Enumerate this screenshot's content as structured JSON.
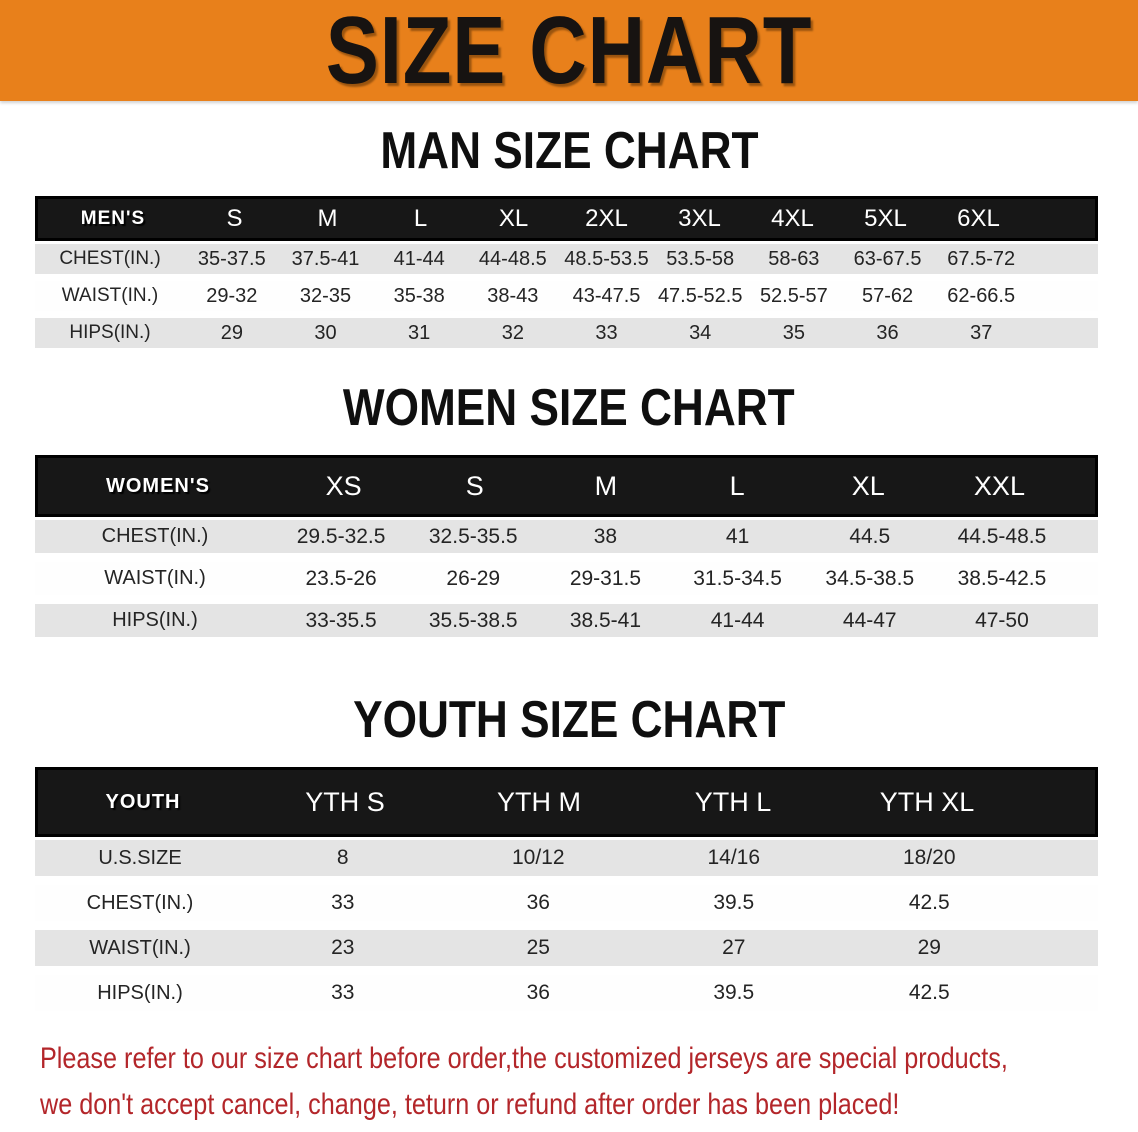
{
  "banner": {
    "title": "SIZE CHART",
    "bg_color": "#E8801B"
  },
  "sections": [
    {
      "heading": "MAN SIZE CHART",
      "header_label": "MEN'S",
      "columns": [
        "S",
        "M",
        "L",
        "XL",
        "2XL",
        "3XL",
        "4XL",
        "5XL",
        "6XL"
      ],
      "rows": [
        {
          "label": "CHEST(IN.)",
          "values": [
            "35-37.5",
            "37.5-41",
            "41-44",
            "44-48.5",
            "48.5-53.5",
            "53.5-58",
            "58-63",
            "63-67.5",
            "67.5-72"
          ]
        },
        {
          "label": "WAIST(IN.)",
          "values": [
            "29-32",
            "32-35",
            "35-38",
            "38-43",
            "43-47.5",
            "47.5-52.5",
            "52.5-57",
            "57-62",
            "62-66.5"
          ]
        },
        {
          "label": "HIPS(IN.)",
          "values": [
            "29",
            "30",
            "31",
            "32",
            "33",
            "34",
            "35",
            "36",
            "37"
          ]
        }
      ]
    },
    {
      "heading": "WOMEN SIZE CHART",
      "header_label": "WOMEN'S",
      "columns": [
        "XS",
        "S",
        "M",
        "L",
        "XL",
        "XXL"
      ],
      "rows": [
        {
          "label": "CHEST(IN.)",
          "values": [
            "29.5-32.5",
            "32.5-35.5",
            "38",
            "41",
            "44.5",
            "44.5-48.5"
          ]
        },
        {
          "label": "WAIST(IN.)",
          "values": [
            "23.5-26",
            "26-29",
            "29-31.5",
            "31.5-34.5",
            "34.5-38.5",
            "38.5-42.5"
          ]
        },
        {
          "label": "HIPS(IN.)",
          "values": [
            "33-35.5",
            "35.5-38.5",
            "38.5-41",
            "41-44",
            "44-47",
            "47-50"
          ]
        }
      ]
    },
    {
      "heading": "YOUTH SIZE CHART",
      "header_label": "YOUTH",
      "columns": [
        "YTH S",
        "YTH M",
        "YTH L",
        "YTH XL"
      ],
      "rows": [
        {
          "label": "U.S.SIZE",
          "values": [
            "8",
            "10/12",
            "14/16",
            "18/20"
          ]
        },
        {
          "label": "CHEST(IN.)",
          "values": [
            "33",
            "36",
            "39.5",
            "42.5"
          ]
        },
        {
          "label": "WAIST(IN.)",
          "values": [
            "23",
            "25",
            "27",
            "29"
          ]
        },
        {
          "label": "HIPS(IN.)",
          "values": [
            "33",
            "36",
            "39.5",
            "42.5"
          ]
        }
      ]
    }
  ],
  "disclaimer": {
    "line1": "Please refer to our size chart before order,the customized jerseys are special products,",
    "line2": "we don't accept cancel, change, teturn or refund after order has been placed!",
    "color": "#B3262A"
  }
}
